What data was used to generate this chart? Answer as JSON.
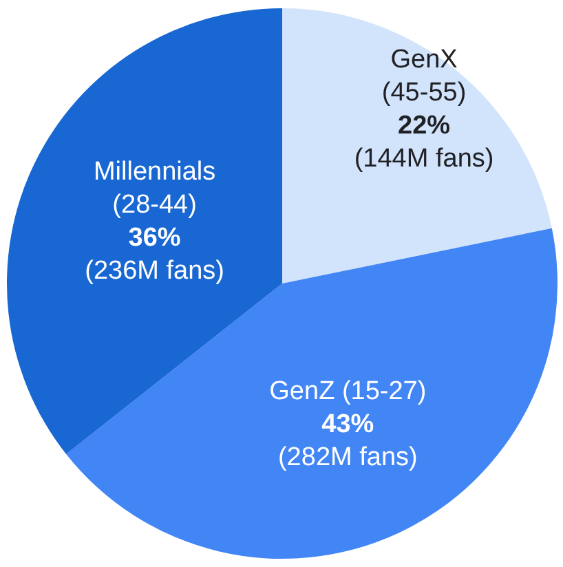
{
  "chart_data": {
    "type": "pie",
    "categories": [
      "GenX (45-55)",
      "GenZ (15-27)",
      "Millennials (28-44)"
    ],
    "values": [
      22,
      43,
      36
    ],
    "colors": [
      "#d2e3fc",
      "#4285f4",
      "#1967d2"
    ],
    "value_labels": [
      "22%",
      "43%",
      "36%"
    ],
    "annotations": [
      "(144M fans)",
      "(282M fans)",
      "(236M fans)"
    ],
    "legend": false
  }
}
